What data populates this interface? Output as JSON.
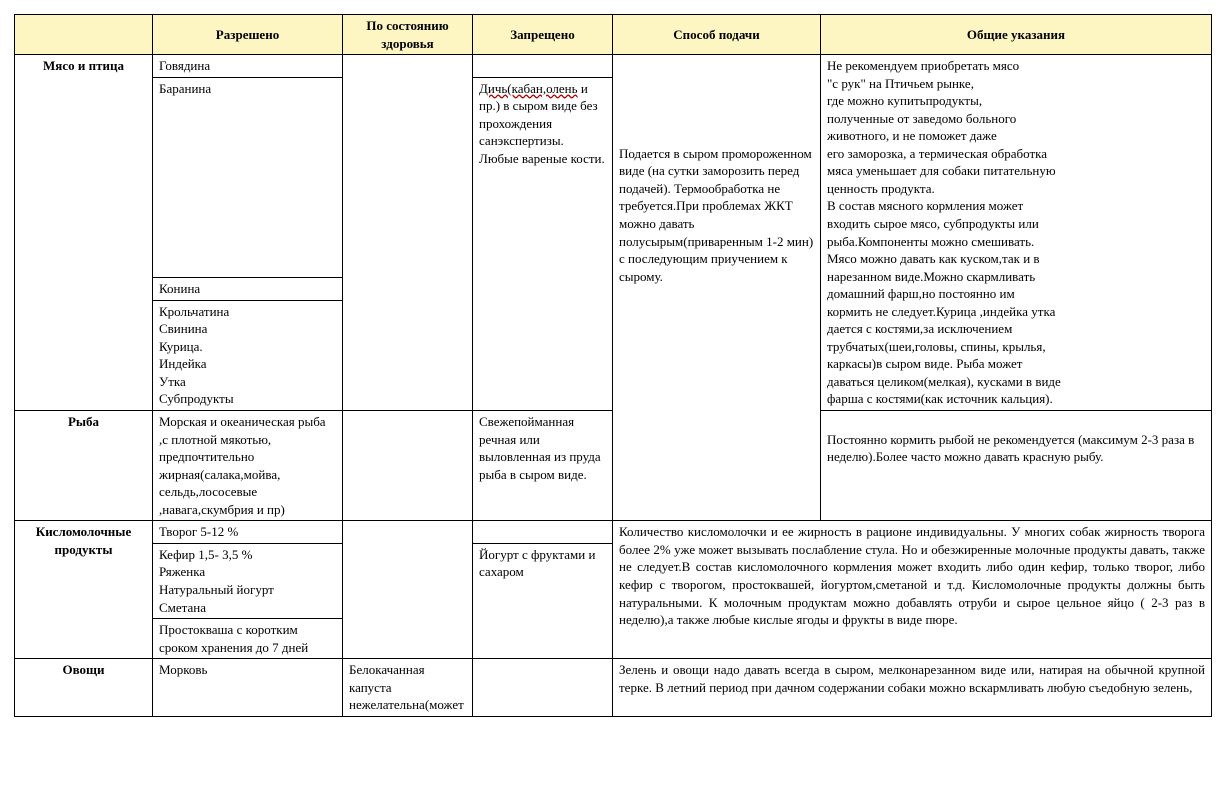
{
  "header": {
    "c0": "",
    "c1": "Разрешено",
    "c2": "По состоянию здоровья",
    "c3": "Запрещено",
    "c4": "Способ подачи",
    "c5": "Общие указания"
  },
  "meat": {
    "label": "Мясо и птица",
    "allowed": {
      "r1": "Говядина",
      "r2": "Баранина",
      "r3": "Конина",
      "r4": "Крольчатина\nСвинина\nКурица.\nИндейка\nУтка\nСубпродукты"
    },
    "forbidden_pre": "Дичь(кабан,олень",
    "forbidden_rest": " и пр.) в сыром виде без прохождения санэкспертизы. Любые вареные кости.",
    "serve": "Подается в сыром промороженном виде (на сутки заморозить перед подачей). Термообработка не требуется.При проблемах ЖКТ можно давать полусырым(приваренным 1-2 мин) с последующим приучением к сырому.",
    "general": "Не рекомендуем приобретать мясо\n\"с рук\" на Птичьем рынке,\nгде можно купитьпродукты,\nполученные от заведомо больного\nживотного, и не поможет даже\n его заморозка, а термическая обработка\n мяса уменьшает для собаки питательную\nценность продукта.\nВ состав мясного кормления может\n входить сырое мясо, субпродукты или\nрыба.Компоненты можно смешивать.\n Мясо можно давать как куском,так и в\nнарезанном виде.Можно скармливать\nдомашний фарш,но постоянно им\n кормить не следует.Курица ,индейка утка\nдается с костями,за исключением\nтрубчатых(шеи,головы, спины, крылья,\nкаркасы)в сыром виде. Рыба может\nдаваться целиком(мелкая), кусками в виде\nфарша с костями(как источник кальция)."
  },
  "fish": {
    "label": "Рыба",
    "allowed": "Морская и океаническая рыба\n,с плотной мякотью, предпочтительно жирная(салака,мойва, сельдь,лососевые ,навага,скумбрия и пр)",
    "forbidden": " Свежепойманная речная или выловленная из пруда рыба в сыром виде.",
    "general": "Постоянно кормить рыбой не рекомендуется (максимум 2-3 раза в неделю).Более часто можно давать красную рыбу."
  },
  "dairy": {
    "label": "Кисломолочные продукты",
    "allowed": {
      "r1": "Творог 5-12 %",
      "r2": "Кефир 1,5- 3,5 %\nРяженка\nНатуральный йогурт\nСметана",
      "r3": "Простокваша с коротким сроком хранения до 7 дней"
    },
    "forbidden": "Йогурт с фруктами и сахаром",
    "general": "Количество кисломолочки  и ее жирность в рационе индивидуальны. У многих собак жирность творога более 2% уже может вызывать послабление стула. Но и обезжиренные молочные продукты давать, также не следует.В состав кисломолочного кормления может входить либо один кефир, только творог, либо кефир с творогом, простоквашей, йогуртом,сметаной  и т.д. Кисломолочные продукты должны быть натуральными. К молочным продуктам можно добавлять  отруби и сырое цельное яйцо ( 2-3 раз в неделю),а также любые кислые ягоды и фрукты в виде пюре."
  },
  "veg": {
    "label": "Овощи",
    "allowed": "Морковь",
    "health": "Белокачанная капуста нежелательна(может",
    "general": "Зелень и овощи надо давать всегда в сыром, мелконарезанном виде или, натирая на обычной крупной терке. В летний период при дачном содержании собаки можно вскармливать любую съедобную зелень,"
  }
}
